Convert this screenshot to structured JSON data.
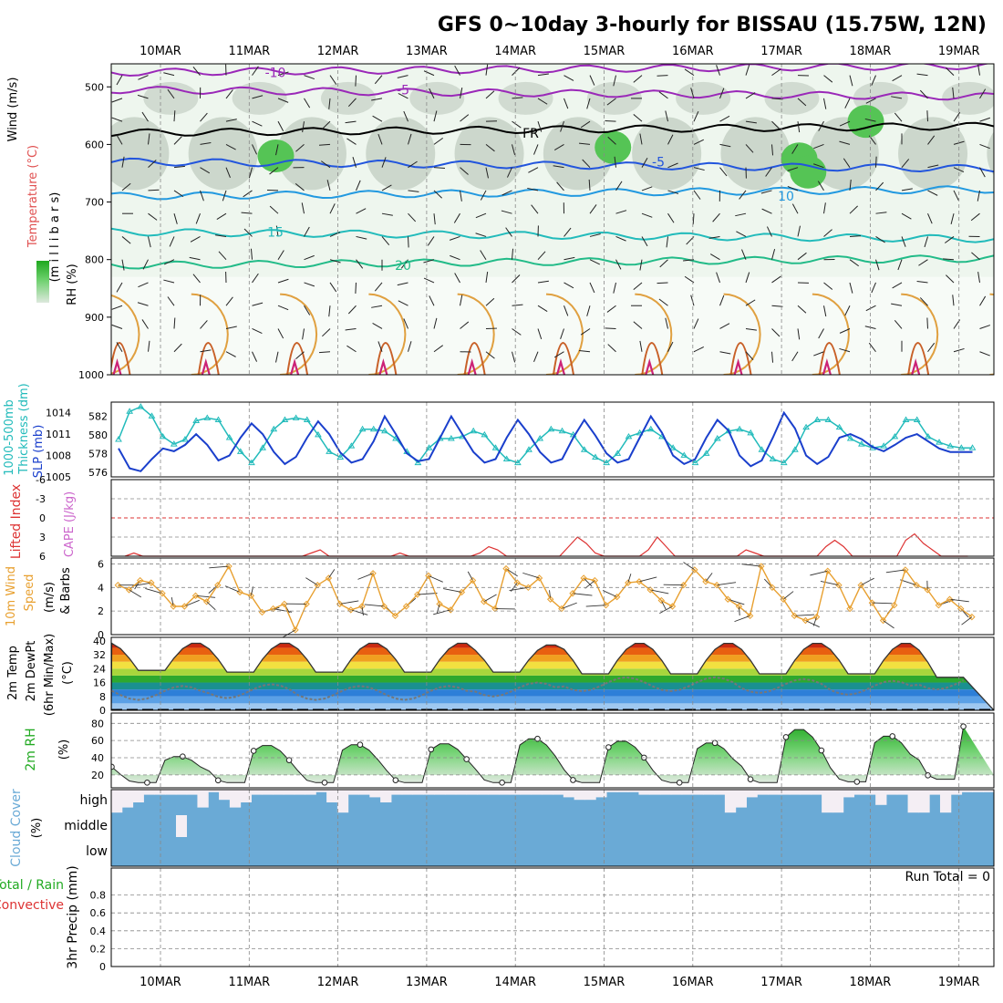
{
  "title": "GFS 0~10day 3-hourly for BISSAU (15.75W, 12N)",
  "dates": [
    "10MAR",
    "11MAR",
    "12MAR",
    "13MAR",
    "14MAR",
    "15MAR",
    "16MAR",
    "17MAR",
    "18MAR",
    "19MAR"
  ],
  "colors": {
    "frame": "#000000",
    "grid": "#888888",
    "cloud": "#6aaad6",
    "rh_fill": "#44bb44",
    "thickness": "#22bbbb",
    "slp": "#1a3fcc",
    "li": "#dd3333",
    "wind": "#e8a030"
  },
  "chart_data": [
    {
      "type": "heatmap",
      "panel": "upper-air",
      "ylabels": [
        {
          "text": "Wind (m/s)",
          "color": "#000000"
        },
        {
          "text": "Temperature (°C)",
          "color": "#e05050"
        },
        {
          "text": "(m i l l i b a r s)",
          "color": "#000000"
        },
        {
          "text": "RH (%)",
          "color": "#000000"
        }
      ],
      "yticks": [
        500,
        600,
        700,
        800,
        900,
        1000
      ],
      "ylim": [
        460,
        1000
      ],
      "yreverse": true,
      "isotherms": [
        {
          "label": "-10",
          "color": "#9a28b8",
          "level": 475
        },
        {
          "label": "-5",
          "color": "#9a28b8",
          "level": 505
        },
        {
          "label": "FR",
          "color": "#000000",
          "level": 580
        },
        {
          "label": "-5",
          "color": "#2255dd",
          "level": 630
        },
        {
          "label": "10",
          "color": "#2299e0",
          "level": 690
        },
        {
          "label": "15",
          "color": "#22bbbb",
          "level": 752
        },
        {
          "label": "20",
          "color": "#22bb88",
          "level": 810
        }
      ],
      "rh_contour_labels": [
        "30",
        "10",
        "30",
        "30"
      ]
    },
    {
      "type": "line",
      "panel": "thickness-slp",
      "ylabels": [
        {
          "text": "1000-500mb",
          "color": "#22bbbb"
        },
        {
          "text": "Thickness (dm)",
          "color": "#22bbbb"
        },
        {
          "text": "SLP (mb)",
          "color": "#1a3fcc"
        }
      ],
      "left_ticks": [
        "576",
        "578",
        "580",
        "582"
      ],
      "right_ticks": [
        "1005",
        "1008",
        "1011",
        "1014"
      ],
      "series": [
        {
          "name": "Thickness",
          "color": "#22bbbb",
          "ylim": [
            575.5,
            583.5
          ],
          "x": [
            0,
            0.125,
            0.25,
            0.375,
            0.5,
            0.625,
            0.75,
            0.875,
            1,
            1.125,
            1.25,
            1.375,
            1.5,
            1.625,
            1.75,
            1.875,
            2,
            2.125,
            2.25,
            2.375,
            2.5,
            2.625,
            2.75,
            2.875,
            3,
            3.125,
            3.25,
            3.375,
            3.5,
            3.625,
            3.75,
            3.875,
            4,
            4.125,
            4.25,
            4.375,
            4.5,
            4.625,
            4.75,
            4.875,
            5,
            5.125,
            5.25,
            5.375,
            5.5,
            5.625,
            5.75,
            5.875,
            6,
            6.125,
            6.25,
            6.375,
            6.5,
            6.625,
            6.75,
            6.875,
            7,
            7.125,
            7.25,
            7.375,
            7.5,
            7.625,
            7.75,
            7.875,
            8,
            8.125,
            8.25,
            8.375,
            8.5,
            8.625,
            8.75,
            8.875,
            9,
            9.125,
            9.25,
            9.375,
            9.5,
            9.625
          ],
          "values": [
            579.5,
            582.5,
            583,
            582,
            579.8,
            579,
            579.5,
            581.5,
            581.8,
            581.6,
            579.7,
            578.2,
            577,
            578.6,
            580.6,
            581.6,
            581.8,
            581.6,
            580,
            578.2,
            577.6,
            578.8,
            580.6,
            580.6,
            580.4,
            579.6,
            578.2,
            577,
            578.6,
            579.6,
            579.6,
            579.8,
            580.4,
            580,
            578.6,
            577.4,
            577,
            578.4,
            579.6,
            580.6,
            580.4,
            580,
            578.4,
            577.6,
            577,
            578,
            579.8,
            580.2,
            580.6,
            579.8,
            578.6,
            577.8,
            577,
            578,
            579.6,
            580.4,
            580.6,
            580.2,
            578.4,
            577.4,
            577,
            578.4,
            580.8,
            581.6,
            581.6,
            580.8,
            579.6,
            579,
            578.6,
            578.8,
            579.8,
            581.6,
            581.6,
            579.8,
            579.2,
            578.8,
            578.6,
            578.6
          ]
        },
        {
          "name": "SLP",
          "color": "#1a3fcc",
          "ylim": [
            1005,
            1015.5
          ],
          "x": [
            0,
            0.125,
            0.25,
            0.375,
            0.5,
            0.625,
            0.75,
            0.875,
            1,
            1.125,
            1.25,
            1.375,
            1.5,
            1.625,
            1.75,
            1.875,
            2,
            2.125,
            2.25,
            2.375,
            2.5,
            2.625,
            2.75,
            2.875,
            3,
            3.125,
            3.25,
            3.375,
            3.5,
            3.625,
            3.75,
            3.875,
            4,
            4.125,
            4.25,
            4.375,
            4.5,
            4.625,
            4.75,
            4.875,
            5,
            5.125,
            5.25,
            5.375,
            5.5,
            5.625,
            5.75,
            5.875,
            6,
            6.125,
            6.25,
            6.375,
            6.5,
            6.625,
            6.75,
            6.875,
            7,
            7.125,
            7.25,
            7.375,
            7.5,
            7.625,
            7.75,
            7.875,
            8,
            8.125,
            8.25,
            8.375,
            8.5,
            8.625,
            8.75,
            8.875,
            9,
            9.125,
            9.25,
            9.375,
            9.5,
            9.625
          ],
          "values": [
            1009,
            1006.2,
            1005.8,
            1007.5,
            1009,
            1008.6,
            1009.5,
            1011,
            1009.5,
            1007.3,
            1008,
            1010.5,
            1012.5,
            1011,
            1008.5,
            1006.8,
            1007.8,
            1010.5,
            1012.8,
            1011,
            1008.4,
            1007,
            1007.5,
            1010,
            1013.5,
            1011,
            1008.3,
            1007.2,
            1007.5,
            1010.5,
            1013.5,
            1011,
            1008.5,
            1007,
            1007.5,
            1010.5,
            1013,
            1011,
            1008.5,
            1007,
            1007.5,
            1010.5,
            1013,
            1010.8,
            1008.3,
            1007,
            1007.5,
            1010.5,
            1013.5,
            1011.2,
            1008,
            1006.8,
            1007.5,
            1010.5,
            1013,
            1011.5,
            1008,
            1006.5,
            1007.3,
            1010.5,
            1014,
            1011.8,
            1008,
            1006.8,
            1007.8,
            1010.5,
            1011,
            1010.3,
            1009.2,
            1008.6,
            1009.5,
            1010.5,
            1011,
            1010,
            1009,
            1008.5,
            1008.5,
            1008.5
          ]
        }
      ]
    },
    {
      "type": "line",
      "panel": "lifted-index",
      "ylabels": [
        {
          "text": "Lifted Index",
          "color": "#dd3333"
        },
        {
          "text": "CAPE (J/kg)",
          "color": "#cc66cc"
        }
      ],
      "ylim": [
        -6,
        6
      ],
      "yreverse": true,
      "yticks": [
        "-6",
        "-3",
        "0",
        "3",
        "6"
      ],
      "series": [
        {
          "name": "Lifted Index",
          "color": "#dd3333",
          "x": [
            0.1,
            0.2,
            0.3,
            0.4,
            0.5,
            0.6,
            0.7,
            0.8,
            0.9,
            1,
            1.1,
            1.2,
            1.3,
            1.4,
            1.5,
            1.6,
            1.7,
            1.8,
            1.9,
            2,
            2.1,
            2.2,
            2.3,
            2.4,
            2.5,
            2.6,
            2.7,
            2.8,
            2.9,
            3,
            3.1,
            3.2,
            3.3,
            3.4,
            3.5,
            3.6,
            3.7,
            3.8,
            3.9,
            4,
            4.1,
            4.2,
            4.3,
            4.4,
            4.5,
            4.6,
            4.7,
            4.8,
            4.9,
            5,
            5.1,
            5.2,
            5.3,
            5.4,
            5.5,
            5.6,
            5.7,
            5.8,
            5.9,
            6,
            6.1,
            6.2,
            6.3,
            6.4,
            6.5,
            6.6,
            6.7,
            6.8,
            6.9,
            7,
            7.1,
            7.2,
            7.3,
            7.4,
            7.5,
            7.6,
            7.7,
            7.8,
            7.9,
            8,
            8.1,
            8.2,
            8.3,
            8.4,
            8.5,
            8.6,
            8.7,
            8.8,
            8.9,
            9,
            9.1,
            9.2,
            9.3,
            9.4,
            9.5,
            9.6
          ],
          "values": [
            6,
            5.5,
            6.5,
            7,
            7,
            7,
            7,
            7,
            7,
            6.5,
            6.5,
            6,
            6,
            6.5,
            7,
            7,
            7,
            7,
            7,
            7,
            6,
            5.5,
            5,
            6,
            7,
            7,
            7,
            7,
            7,
            6.5,
            6,
            5.5,
            6,
            7,
            7,
            7,
            7,
            7,
            7,
            6.5,
            5.5,
            4.5,
            5,
            6,
            7,
            7,
            7,
            7,
            7,
            6.5,
            4.5,
            3,
            4,
            5.5,
            7,
            7,
            7,
            7,
            6.5,
            5,
            3,
            4.5,
            6,
            7,
            7,
            7,
            7,
            7,
            6.5,
            6,
            5,
            5.5,
            6.5,
            7,
            7,
            7,
            7,
            7,
            6.5,
            4.5,
            3.5,
            4.5,
            6,
            7,
            7,
            7,
            7,
            6,
            3.5,
            2.5,
            4,
            5,
            6,
            6.5,
            7,
            7
          ]
        }
      ]
    },
    {
      "type": "line",
      "panel": "wind",
      "ylabels": [
        {
          "text": "10m Wind",
          "color": "#e8a030"
        },
        {
          "text": "Speed",
          "color": "#e8a030"
        },
        {
          "text": "(m/s)",
          "color": "#000000"
        },
        {
          "text": "& Barbs",
          "color": "#000000"
        }
      ],
      "ylim": [
        0,
        6.5
      ],
      "yticks": [
        "0",
        "2",
        "4",
        "6"
      ],
      "series": [
        {
          "name": "10m Wind Speed",
          "color": "#e8a030",
          "x": [
            0,
            0.125,
            0.25,
            0.375,
            0.5,
            0.625,
            0.75,
            0.875,
            1,
            1.125,
            1.25,
            1.375,
            1.5,
            1.625,
            1.75,
            1.875,
            2,
            2.125,
            2.25,
            2.375,
            2.5,
            2.625,
            2.75,
            2.875,
            3,
            3.125,
            3.25,
            3.375,
            3.5,
            3.625,
            3.75,
            3.875,
            4,
            4.125,
            4.25,
            4.375,
            4.5,
            4.625,
            4.75,
            4.875,
            5,
            5.125,
            5.25,
            5.375,
            5.5,
            5.625,
            5.75,
            5.875,
            6,
            6.125,
            6.25,
            6.375,
            6.5,
            6.625,
            6.75,
            6.875,
            7,
            7.125,
            7.25,
            7.375,
            7.5,
            7.625,
            7.75,
            7.875,
            8,
            8.125,
            8.25,
            8.375,
            8.5,
            8.625,
            8.75,
            8.875,
            9,
            9.125,
            9.25,
            9.375,
            9.5,
            9.625
          ],
          "values": [
            4.2,
            3.8,
            4.6,
            4.4,
            3.5,
            2.4,
            2.4,
            3.3,
            2.8,
            4.2,
            5.8,
            3.6,
            3.3,
            1.9,
            2.2,
            2.6,
            0.4,
            2.6,
            4.2,
            4.8,
            2.6,
            2.1,
            2.4,
            5.2,
            2.4,
            1.6,
            2.4,
            3.4,
            5,
            2.6,
            2.1,
            3.6,
            4.6,
            2.8,
            2.2,
            5.6,
            4.4,
            4,
            4.8,
            3,
            2.2,
            3.5,
            4.8,
            4.6,
            2.5,
            3.2,
            4.4,
            4.5,
            3.8,
            2.9,
            2.4,
            4.2,
            5.5,
            4.5,
            4.2,
            3,
            2.4,
            1.6,
            5.8,
            4,
            3,
            1.6,
            1.2,
            1.5,
            5.4,
            4.2,
            2.2,
            4.2,
            2.7,
            1.2,
            2.5,
            5.5,
            4.2,
            3.8,
            2.5,
            3,
            2.2,
            1.5
          ]
        }
      ]
    },
    {
      "type": "area",
      "panel": "temperature",
      "ylabels": [
        {
          "text": "2m Temp",
          "color": "#000000"
        },
        {
          "text": "2m DewPt",
          "color": "#000000"
        },
        {
          "text": "(6hr Min/Max)",
          "color": "#000000"
        },
        {
          "text": "(°C)",
          "color": "#000000"
        }
      ],
      "ylim": [
        0,
        42
      ],
      "yticks": [
        "0",
        "8",
        "16",
        "24",
        "32",
        "40"
      ],
      "yticks_extra": [
        "36",
        "28",
        "20",
        "12",
        "4"
      ],
      "series": [
        {
          "name": "2m Temp",
          "color": "#444444",
          "daily_max": [
            39,
            39,
            39,
            39,
            38,
            39,
            39,
            39,
            39,
            39
          ],
          "daily_min": [
            23,
            22,
            22,
            22,
            22,
            21,
            21,
            21,
            21,
            19
          ]
        },
        {
          "name": "2m DewPt",
          "color": "#666666",
          "daily_values": [
            10,
            11,
            10,
            10,
            12,
            15,
            15,
            14,
            13,
            16
          ]
        }
      ]
    },
    {
      "type": "area",
      "panel": "rh",
      "ylabels": [
        {
          "text": "2m RH",
          "color": "#22aa22"
        },
        {
          "text": "(%)",
          "color": "#000000"
        }
      ],
      "ylim": [
        5,
        92
      ],
      "yticks": [
        "20",
        "40",
        "60",
        "80"
      ],
      "series": [
        {
          "name": "2m RH",
          "color": "#22aa22",
          "daily_max": [
            42,
            55,
            56,
            57,
            63,
            60,
            58,
            74,
            66,
            88
          ],
          "daily_min": [
            11,
            11,
            11,
            11,
            11,
            11,
            11,
            11,
            12,
            15
          ]
        }
      ]
    },
    {
      "type": "bar",
      "panel": "cloud",
      "ylabels": [
        {
          "text": "Cloud Cover",
          "color": "#6aaad6"
        },
        {
          "text": "(%)",
          "color": "#000000"
        }
      ],
      "levels": [
        "high",
        "middle",
        "low"
      ],
      "high_clear_fraction": [
        0.9,
        0.7,
        0.5,
        0.2,
        0.2,
        0.2,
        0.2,
        0.2,
        0.7,
        0.1,
        0.4,
        0.7,
        0.5,
        0.2,
        0.2,
        0.2,
        0.2,
        0.2,
        0.2,
        0.1,
        0.5,
        0.9,
        0.2,
        0.2,
        0.3,
        0.5,
        0.2,
        0.2,
        0.2,
        0.2,
        0.2,
        0.2,
        0.2,
        0.2,
        0.2,
        0.2,
        0.2,
        0.2,
        0.2,
        0.2,
        0.2,
        0.2,
        0.3,
        0.4,
        0.4,
        0.3,
        0.1,
        0.1,
        0.1,
        0.2,
        0.2,
        0.2,
        0.2,
        0.2,
        0.2,
        0.2,
        0.2,
        0.9,
        0.7,
        0.3,
        0.2,
        0.2,
        0.2,
        0.2,
        0.2,
        0.2,
        0.9,
        0.9,
        0.3,
        0.2,
        0.2,
        0.6,
        0.2,
        0.2,
        0.9,
        0.9,
        0.2,
        0.9,
        0.2,
        0.1,
        0.1,
        0.1
      ]
    },
    {
      "type": "bar",
      "panel": "precip",
      "ylabels": [
        {
          "text": "3hr Precip (mm)",
          "color": "#000000"
        },
        {
          "text": "Total / Rain",
          "color": "#22aa22"
        },
        {
          "text": "Convective",
          "color": "#dd3333"
        }
      ],
      "ylim": [
        0,
        1
      ],
      "yticks": [
        "0",
        "0.2",
        "0.4",
        "0.6",
        "0.8"
      ],
      "values": [],
      "annotation": "Run Total = 0"
    }
  ]
}
